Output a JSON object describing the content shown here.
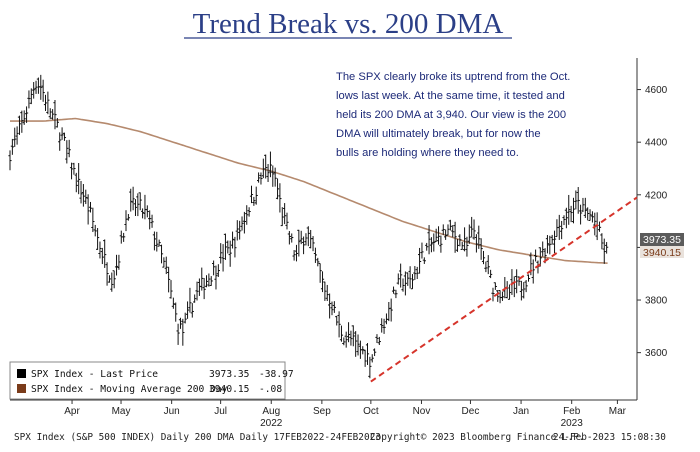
{
  "chart_data": {
    "type": "ohlc-bar",
    "title": "Trend Break vs. 200 DMA",
    "annotation": [
      "The SPX clearly broke its uptrend from the Oct.",
      "lows last week. At the same time, it tested and",
      "held its 200 DMA at 3,940. Our view is the 200",
      "DMA will ultimately break, but for now the",
      "bulls are holding where they  need to."
    ],
    "y_ticks": [
      "3600",
      "3800",
      "4000",
      "4200",
      "4400",
      "4600"
    ],
    "ylim": [
      3420,
      4720
    ],
    "x_ticks": [
      {
        "label": "Apr",
        "day": 38
      },
      {
        "label": "May",
        "day": 68
      },
      {
        "label": "Jun",
        "day": 99
      },
      {
        "label": "Jul",
        "day": 129
      },
      {
        "label": "Aug",
        "day": 160
      },
      {
        "label": "Sep",
        "day": 191
      },
      {
        "label": "Oct",
        "day": 221
      },
      {
        "label": "Nov",
        "day": 252
      },
      {
        "label": "Dec",
        "day": 282
      },
      {
        "label": "Jan",
        "day": 313
      },
      {
        "label": "Feb",
        "day": 344
      },
      {
        "label": "Mar",
        "day": 372
      }
    ],
    "year_labels": [
      {
        "label": "2022",
        "day": 160
      },
      {
        "label": "2023",
        "day": 344
      }
    ],
    "x_range_days": [
      0,
      384
    ],
    "price_anchors": [
      [
        0,
        4360
      ],
      [
        5,
        4430
      ],
      [
        10,
        4520
      ],
      [
        14,
        4600
      ],
      [
        16,
        4630
      ],
      [
        19,
        4610
      ],
      [
        22,
        4560
      ],
      [
        26,
        4500
      ],
      [
        29,
        4460
      ],
      [
        33,
        4400
      ],
      [
        37,
        4330
      ],
      [
        41,
        4250
      ],
      [
        45,
        4200
      ],
      [
        49,
        4130
      ],
      [
        53,
        4050
      ],
      [
        57,
        3970
      ],
      [
        60,
        3920
      ],
      [
        63,
        3880
      ],
      [
        66,
        3950
      ],
      [
        69,
        4040
      ],
      [
        72,
        4140
      ],
      [
        76,
        4160
      ],
      [
        80,
        4150
      ],
      [
        84,
        4120
      ],
      [
        88,
        4060
      ],
      [
        92,
        3980
      ],
      [
        96,
        3900
      ],
      [
        100,
        3780
      ],
      [
        103,
        3700
      ],
      [
        106,
        3680
      ],
      [
        110,
        3760
      ],
      [
        114,
        3820
      ],
      [
        118,
        3860
      ],
      [
        122,
        3890
      ],
      [
        126,
        3920
      ],
      [
        130,
        3970
      ],
      [
        134,
        3990
      ],
      [
        138,
        4030
      ],
      [
        142,
        4090
      ],
      [
        146,
        4150
      ],
      [
        150,
        4210
      ],
      [
        154,
        4270
      ],
      [
        157,
        4300
      ],
      [
        160,
        4290
      ],
      [
        163,
        4250
      ],
      [
        166,
        4150
      ],
      [
        169,
        4080
      ],
      [
        172,
        4030
      ],
      [
        175,
        3960
      ],
      [
        178,
        4020
      ],
      [
        182,
        4060
      ],
      [
        185,
        4000
      ],
      [
        189,
        3920
      ],
      [
        193,
        3840
      ],
      [
        197,
        3790
      ],
      [
        201,
        3700
      ],
      [
        205,
        3660
      ],
      [
        209,
        3650
      ],
      [
        213,
        3620
      ],
      [
        217,
        3600
      ],
      [
        221,
        3570
      ],
      [
        224,
        3620
      ],
      [
        228,
        3700
      ],
      [
        232,
        3760
      ],
      [
        236,
        3830
      ],
      [
        240,
        3880
      ],
      [
        244,
        3860
      ],
      [
        248,
        3900
      ],
      [
        252,
        3960
      ],
      [
        256,
        4000
      ],
      [
        260,
        4020
      ],
      [
        264,
        4040
      ],
      [
        268,
        4060
      ],
      [
        272,
        4050
      ],
      [
        276,
        4020
      ],
      [
        280,
        4000
      ],
      [
        284,
        4070
      ],
      [
        288,
        3990
      ],
      [
        292,
        3920
      ],
      [
        296,
        3850
      ],
      [
        300,
        3830
      ],
      [
        304,
        3820
      ],
      [
        308,
        3840
      ],
      [
        312,
        3850
      ],
      [
        316,
        3880
      ],
      [
        320,
        3930
      ],
      [
        324,
        3960
      ],
      [
        328,
        4000
      ],
      [
        332,
        4040
      ],
      [
        336,
        4080
      ],
      [
        340,
        4120
      ],
      [
        344,
        4150
      ],
      [
        348,
        4160
      ],
      [
        352,
        4130
      ],
      [
        356,
        4120
      ],
      [
        360,
        4080
      ],
      [
        362,
        4020
      ],
      [
        364,
        3990
      ],
      [
        366,
        3973
      ]
    ],
    "sma200_anchors": [
      [
        0,
        4480
      ],
      [
        20,
        4480
      ],
      [
        40,
        4490
      ],
      [
        60,
        4470
      ],
      [
        80,
        4440
      ],
      [
        100,
        4400
      ],
      [
        120,
        4360
      ],
      [
        140,
        4320
      ],
      [
        160,
        4290
      ],
      [
        180,
        4250
      ],
      [
        200,
        4200
      ],
      [
        220,
        4150
      ],
      [
        240,
        4100
      ],
      [
        260,
        4060
      ],
      [
        280,
        4020
      ],
      [
        300,
        3990
      ],
      [
        320,
        3970
      ],
      [
        340,
        3950
      ],
      [
        360,
        3942
      ],
      [
        366,
        3940
      ]
    ],
    "trendline": {
      "from": [
        221,
        3490
      ],
      "to": [
        384,
        4190
      ]
    },
    "legend": [
      {
        "swatch": "#000000",
        "label": "SPX Index - Last Price",
        "value": "3973.35",
        "change": "-38.97"
      },
      {
        "swatch": "#7a3b1a",
        "label": "SPX Index - Moving Average 200 Day",
        "value": "3940.15",
        "change": "-.08"
      }
    ],
    "last_price_tag": "3973.35",
    "sma_tag": "3940.15",
    "colors": {
      "price": "#111111",
      "sma": "#b58a6e",
      "trendline": "#d6342b",
      "title": "#2b3f87",
      "annotation": "#1d2a78",
      "tag_bg": "#5b5b5b"
    }
  },
  "footer": {
    "left": "SPX Index (S&P 500 INDEX) Daily 200 DMA  Daily 17FEB2022-24FEB2023",
    "middle": "Copyright© 2023 Bloomberg Finance L.P.",
    "right": "24-Feb-2023 15:08:30"
  }
}
